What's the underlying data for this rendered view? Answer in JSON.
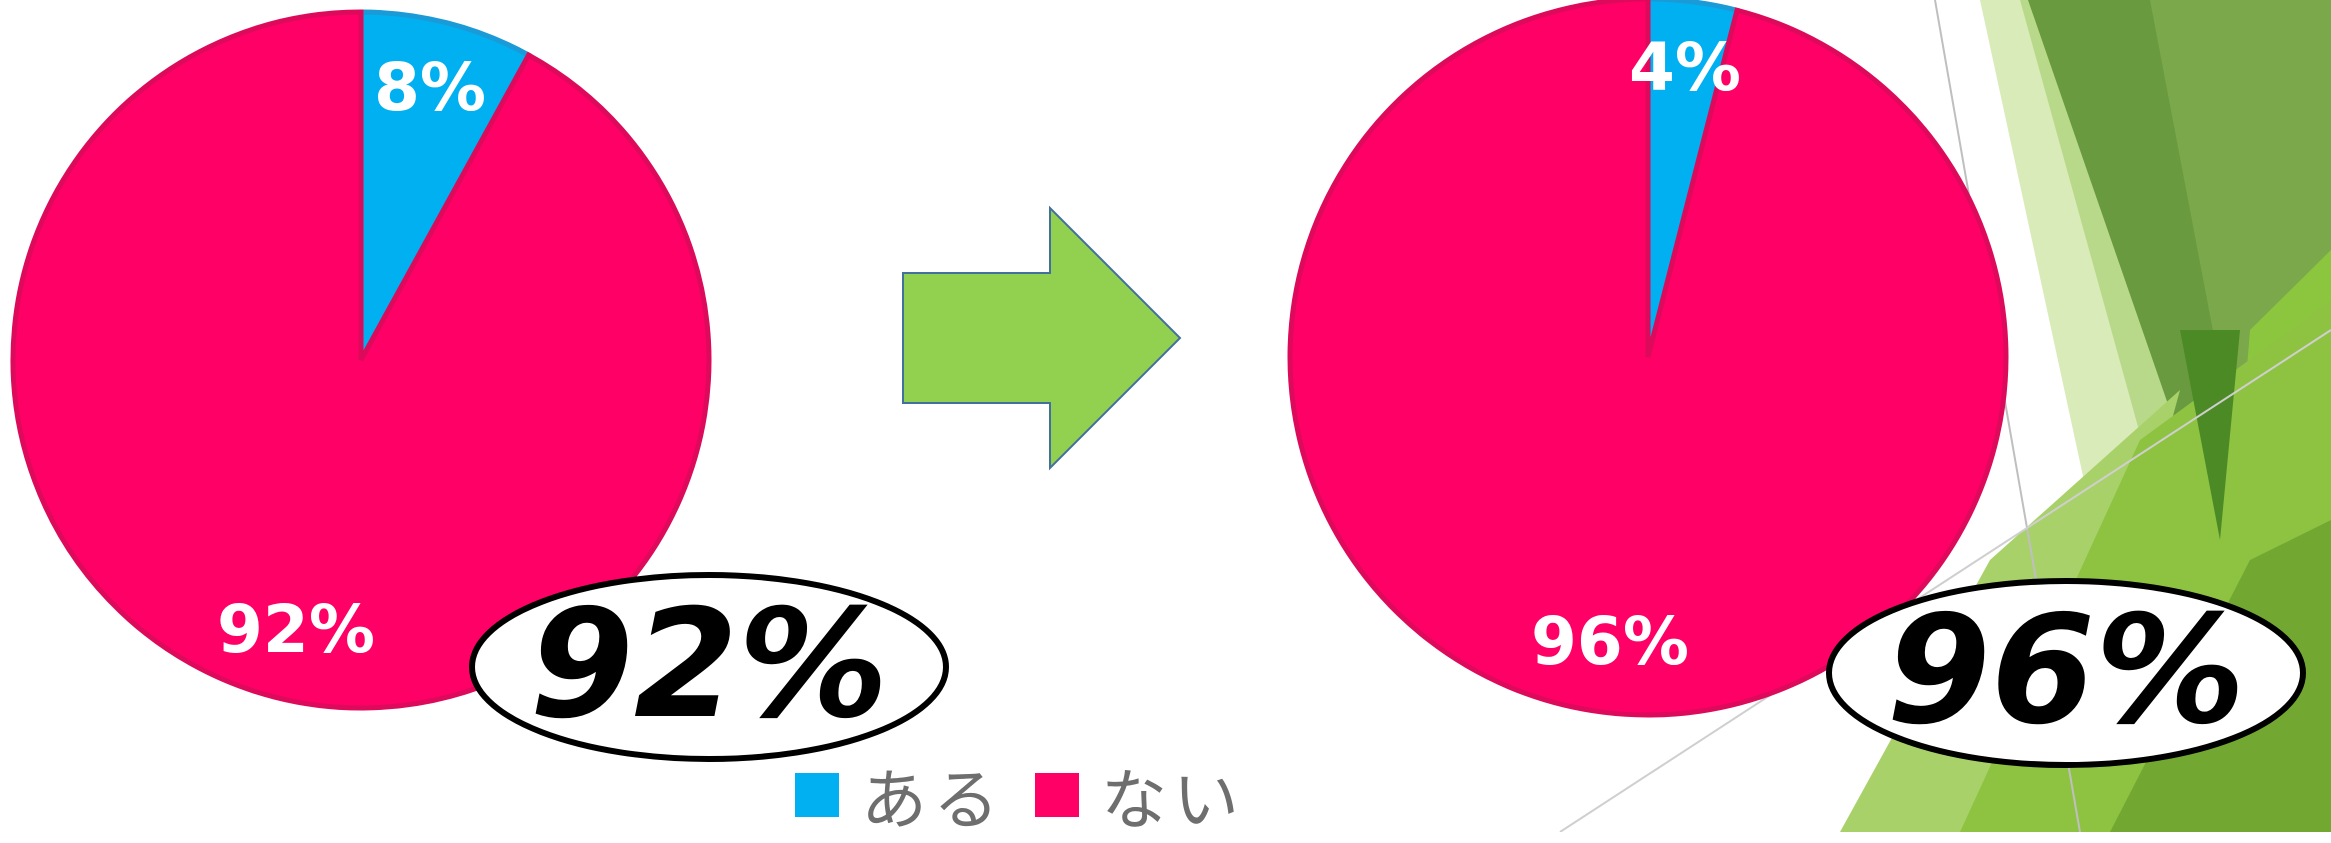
{
  "chart_data": [
    {
      "type": "pie",
      "slices": [
        {
          "category": "ある",
          "value": 8,
          "label": "8%",
          "color": "#00b0f0"
        },
        {
          "category": "ない",
          "value": 92,
          "label": "92%",
          "color": "#ff0066"
        }
      ],
      "callout": "92%"
    },
    {
      "type": "pie",
      "slices": [
        {
          "category": "ある",
          "value": 4,
          "label": "4%",
          "color": "#00b0f0"
        },
        {
          "category": "ない",
          "value": 96,
          "label": "96%",
          "color": "#ff0066"
        }
      ],
      "callout": "96%"
    }
  ],
  "legend": [
    {
      "label": "ある",
      "color": "#00b0f0"
    },
    {
      "label": "ない",
      "color": "#ff0066"
    }
  ],
  "colors": {
    "arrow": "#92d050",
    "arrow_outline": "#41719c",
    "border": "#dd0a5c"
  }
}
